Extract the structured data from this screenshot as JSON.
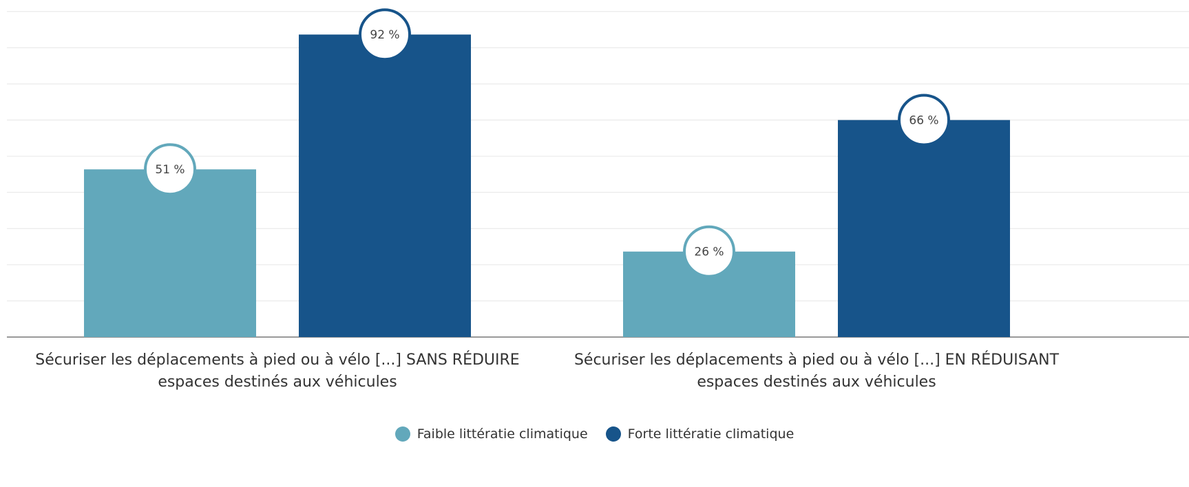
{
  "chart_data": {
    "type": "bar",
    "categories": [
      "Sécuriser les déplacements à pied ou à vélo [...] SANS RÉDUIRE espaces destinés aux véhicules",
      "Sécuriser les déplacements à pied ou à vélo [...] EN RÉDUISANT espaces destinés aux véhicules"
    ],
    "series": [
      {
        "name": "Faible littératie climatique",
        "color": "#62a8bb",
        "values": [
          51,
          26
        ],
        "value_labels": [
          "51 %",
          "26 %"
        ]
      },
      {
        "name": "Forte littératie climatique",
        "color": "#17548a",
        "values": [
          92,
          66
        ],
        "value_labels": [
          "92 %",
          "66 %"
        ]
      }
    ],
    "ylim": [
      0,
      100
    ],
    "yticks": [
      0,
      11,
      22,
      33,
      44,
      55,
      66,
      77,
      88,
      99
    ],
    "grid": true,
    "legend": "bottom"
  }
}
